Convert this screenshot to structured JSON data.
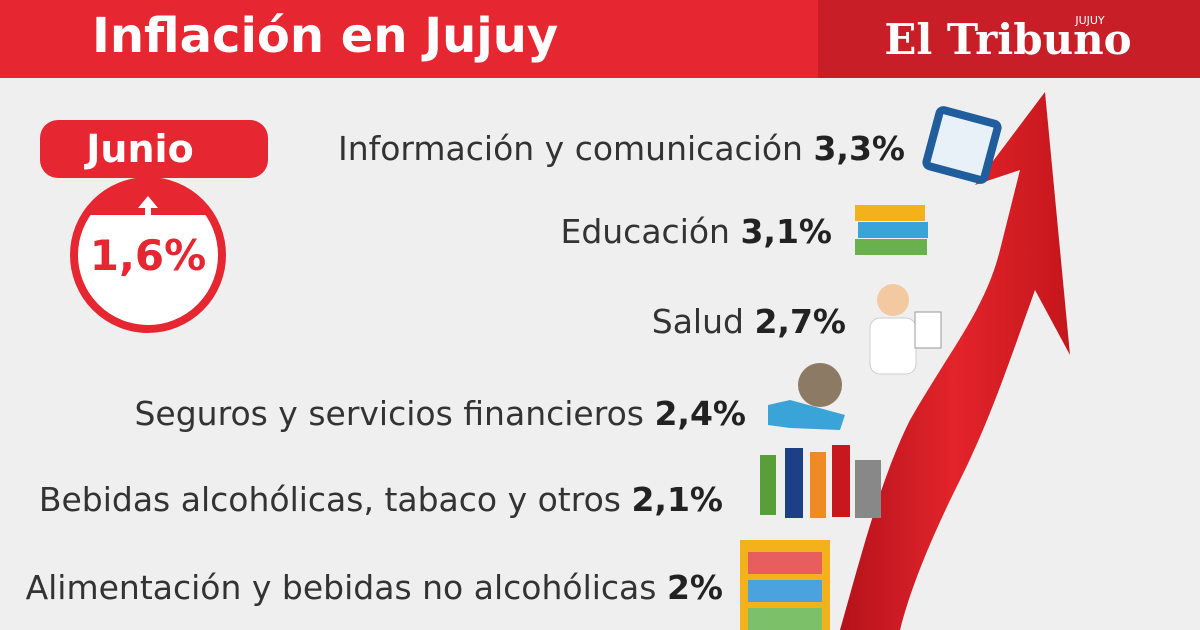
{
  "header": {
    "title": "Inflación en Jujuy",
    "brand": "El Tribuno",
    "brand_sub": "JUJUY"
  },
  "badge": {
    "month": "Junio",
    "value": "1,6%"
  },
  "items": [
    {
      "label": "Información y comunicación",
      "value": "3,3%"
    },
    {
      "label": "Educación",
      "value": "3,1%"
    },
    {
      "label": "Salud",
      "value": "2,7%"
    },
    {
      "label": "Seguros y servicios financieros",
      "value": "2,4%"
    },
    {
      "label": "Bebidas alcohólicas, tabaco y otros",
      "value": "2,1%"
    },
    {
      "label": "Alimentación y bebidas no alcohólicas",
      "value": "2%"
    }
  ]
}
